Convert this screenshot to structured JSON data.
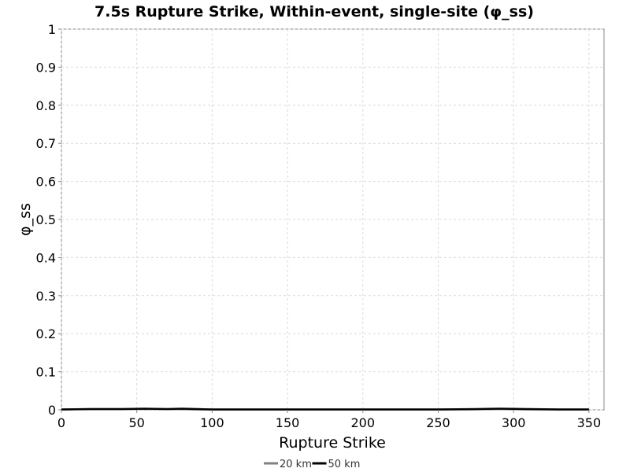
{
  "chart_data": {
    "type": "line",
    "title": "7.5s Rupture Strike, Within-event, single-site (φ_ss)",
    "xlabel": "Rupture Strike",
    "ylabel": "φ_ss",
    "xlim": [
      0,
      360
    ],
    "ylim": [
      0,
      1
    ],
    "xticks": [
      0,
      50,
      100,
      150,
      200,
      250,
      300,
      350
    ],
    "yticks": [
      0,
      0.1,
      0.2,
      0.3,
      0.4,
      0.5,
      0.6,
      0.7,
      0.8,
      0.9,
      1
    ],
    "grid": true,
    "legend_position": "bottom",
    "series": [
      {
        "name": "20 km",
        "color": "#808080",
        "x": [
          0,
          20,
          40,
          55,
          70,
          90,
          120,
          150,
          180,
          210,
          240,
          270,
          290,
          310,
          330,
          350
        ],
        "y": [
          0.001,
          0.002,
          0.002,
          0.002,
          0.002,
          0.001,
          0.001,
          0.001,
          0.001,
          0.001,
          0.001,
          0.001,
          0.002,
          0.001,
          0.001,
          0.001
        ]
      },
      {
        "name": "50 km",
        "color": "#000000",
        "x": [
          0,
          20,
          40,
          55,
          70,
          80,
          100,
          130,
          160,
          190,
          220,
          250,
          275,
          290,
          310,
          330,
          350
        ],
        "y": [
          0.001,
          0.002,
          0.002,
          0.003,
          0.002,
          0.003,
          0.001,
          0.001,
          0.001,
          0.001,
          0.001,
          0.001,
          0.002,
          0.003,
          0.002,
          0.001,
          0.001
        ]
      }
    ]
  }
}
